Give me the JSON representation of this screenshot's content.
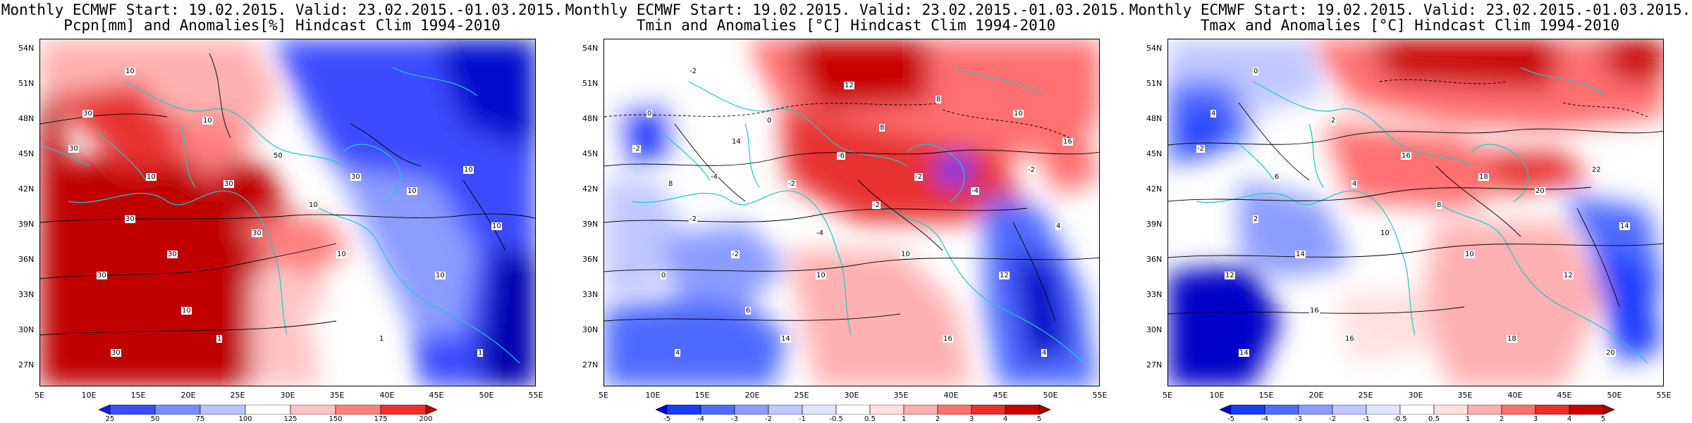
{
  "panels": [
    {
      "id": "pcpn",
      "title_line1": "Monthly ECMWF Start: 19.02.2015. Valid: 23.02.2015.-01.03.2015.",
      "title_line2": "Pcpn[mm] and Anomalies[%] Hindcast Clim 1994-2010",
      "colorbar_labels": [
        "25",
        "50",
        "75",
        "100",
        "125",
        "150",
        "175",
        "200"
      ],
      "colorbar_colors": [
        "#1a1aff",
        "#3d4dff",
        "#7a8cff",
        "#b8c4ff",
        "#ffffff",
        "#ffc4c4",
        "#ff8080",
        "#ef3030",
        "#c00000"
      ],
      "contour_labels": [
        "10",
        "30",
        "10",
        "30",
        "10",
        "30",
        "30",
        "10",
        "30",
        "30",
        "30",
        "50",
        "30",
        "10",
        "10",
        "10",
        "10",
        "30",
        "10",
        "10",
        "1",
        "1",
        "1"
      ]
    },
    {
      "id": "tmin",
      "title_line1": "Monthly ECMWF Start: 19.02.2015. Valid: 23.02.2015.-01.03.2015.",
      "title_line2": "Tmin and Anomalies [°C] Hindcast Clim 1994-2010",
      "colorbar_labels": [
        "-5",
        "-4",
        "-3",
        "-2",
        "-1",
        "-0.5",
        "0.5",
        "1",
        "2",
        "3",
        "4",
        "5"
      ],
      "colorbar_colors": [
        "#0000c8",
        "#1a3cff",
        "#4d6bff",
        "#8c9cff",
        "#bfc8ff",
        "#e0e6ff",
        "#ffffff",
        "#ffe0e0",
        "#ffb0b0",
        "#ff7070",
        "#e83030",
        "#c80000",
        "#a00000"
      ],
      "contour_labels": [
        "-2",
        "0",
        "0",
        "-2",
        "-4",
        "-2",
        "-2",
        "-2",
        "-4",
        "0",
        "-2",
        "-6",
        "-2",
        "-4",
        "-2",
        "4",
        "6",
        "4",
        "10",
        "12",
        "14",
        "16",
        "4",
        "12",
        "8",
        "14",
        "10",
        "8",
        "8",
        "16",
        "10"
      ]
    },
    {
      "id": "tmax",
      "title_line1": "Monthly ECMWF Start: 19.02.2015. Valid: 23.02.2015.-01.03.2015.",
      "title_line2": "Tmax and Anomalies [°C] Hindcast Clim 1994-2010",
      "colorbar_labels": [
        "-5",
        "-4",
        "-3",
        "-2",
        "-1",
        "-0.5",
        "0.5",
        "1",
        "2",
        "3",
        "4",
        "5"
      ],
      "colorbar_colors": [
        "#0000c8",
        "#1a3cff",
        "#4d6bff",
        "#8c9cff",
        "#bfc8ff",
        "#e0e6ff",
        "#ffffff",
        "#ffe0e0",
        "#ffb0b0",
        "#ff7070",
        "#e83030",
        "#c80000",
        "#a00000"
      ],
      "contour_labels": [
        "0",
        "4",
        "2",
        "-2",
        "6",
        "4",
        "2",
        "8",
        "10",
        "12",
        "14",
        "16",
        "18",
        "20",
        "22",
        "14",
        "16",
        "14",
        "10",
        "12",
        "16",
        "18",
        "20"
      ]
    }
  ],
  "latitude_labels": [
    "54N",
    "51N",
    "48N",
    "45N",
    "42N",
    "39N",
    "36N",
    "33N",
    "30N",
    "27N"
  ],
  "longitude_labels": [
    "5E",
    "10E",
    "15E",
    "20E",
    "25E",
    "30E",
    "35E",
    "40E",
    "45E",
    "50E",
    "55E"
  ]
}
